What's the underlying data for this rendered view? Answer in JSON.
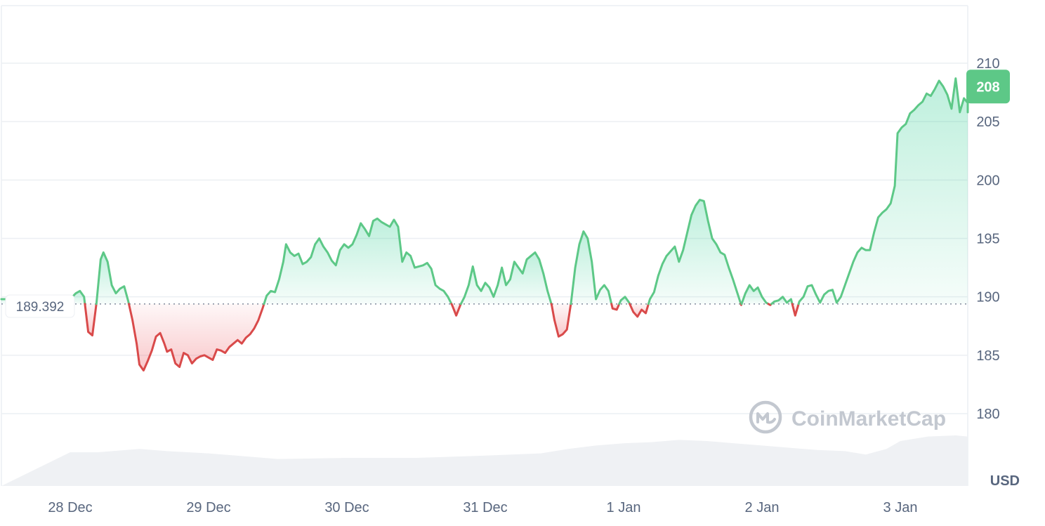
{
  "chart_data": {
    "type": "area",
    "x_labels": [
      "28 Dec",
      "29 Dec",
      "30 Dec",
      "31 Dec",
      "1 Jan",
      "2 Jan",
      "3 Jan"
    ],
    "y_ticks": [
      180,
      185,
      190,
      195,
      200,
      205,
      210
    ],
    "ylim": [
      175.5,
      212.5
    ],
    "unit": "USD",
    "baseline": 189.392,
    "baseline_label": "189.392",
    "current_value": 208,
    "current_label": "208",
    "watermark": "CoinMarketCap",
    "grid": true,
    "colors": {
      "up": "#16c784",
      "down": "#ea3943",
      "line_up": "#5dc887",
      "line_down": "#d94a4a",
      "volume": "#eff1f4",
      "current_badge": "#5dc887"
    },
    "series": [
      {
        "values": [
          [
            0,
            189.8
          ],
          [
            0.04,
            190.3
          ],
          [
            0.07,
            190.5
          ],
          [
            0.1,
            190.0
          ],
          [
            0.13,
            187.0
          ],
          [
            0.16,
            186.7
          ],
          [
            0.19,
            189.5
          ],
          [
            0.22,
            193.2
          ],
          [
            0.24,
            193.8
          ],
          [
            0.27,
            193.0
          ],
          [
            0.3,
            191.0
          ],
          [
            0.33,
            190.3
          ],
          [
            0.36,
            190.7
          ],
          [
            0.39,
            190.9
          ],
          [
            0.42,
            189.6
          ],
          [
            0.45,
            188.0
          ],
          [
            0.48,
            186.0
          ],
          [
            0.5,
            184.2
          ],
          [
            0.53,
            183.7
          ],
          [
            0.56,
            184.5
          ],
          [
            0.59,
            185.4
          ],
          [
            0.62,
            186.6
          ],
          [
            0.65,
            186.9
          ],
          [
            0.68,
            186.0
          ],
          [
            0.7,
            185.3
          ],
          [
            0.73,
            185.5
          ],
          [
            0.76,
            184.3
          ],
          [
            0.79,
            184.0
          ],
          [
            0.82,
            185.2
          ],
          [
            0.85,
            185.0
          ],
          [
            0.88,
            184.3
          ],
          [
            0.91,
            184.7
          ],
          [
            0.94,
            184.9
          ],
          [
            0.97,
            185.0
          ],
          [
            1.0,
            184.8
          ],
          [
            1.03,
            184.6
          ],
          [
            1.06,
            185.5
          ],
          [
            1.09,
            185.4
          ],
          [
            1.12,
            185.2
          ],
          [
            1.15,
            185.7
          ],
          [
            1.18,
            186.0
          ],
          [
            1.21,
            186.3
          ],
          [
            1.24,
            186.0
          ],
          [
            1.27,
            186.5
          ],
          [
            1.3,
            186.8
          ],
          [
            1.33,
            187.3
          ],
          [
            1.36,
            188.0
          ],
          [
            1.39,
            189.0
          ],
          [
            1.42,
            190.1
          ],
          [
            1.45,
            190.5
          ],
          [
            1.48,
            190.4
          ],
          [
            1.51,
            191.5
          ],
          [
            1.54,
            193.0
          ],
          [
            1.56,
            194.5
          ],
          [
            1.59,
            193.8
          ],
          [
            1.62,
            193.5
          ],
          [
            1.65,
            193.7
          ],
          [
            1.68,
            192.8
          ],
          [
            1.71,
            193.0
          ],
          [
            1.74,
            193.4
          ],
          [
            1.77,
            194.5
          ],
          [
            1.8,
            195.0
          ],
          [
            1.83,
            194.3
          ],
          [
            1.86,
            193.8
          ],
          [
            1.89,
            193.1
          ],
          [
            1.92,
            192.7
          ],
          [
            1.95,
            194.0
          ],
          [
            1.98,
            194.5
          ],
          [
            2.01,
            194.2
          ],
          [
            2.04,
            194.5
          ],
          [
            2.07,
            195.3
          ],
          [
            2.1,
            196.3
          ],
          [
            2.13,
            195.8
          ],
          [
            2.16,
            195.2
          ],
          [
            2.19,
            196.5
          ],
          [
            2.22,
            196.7
          ],
          [
            2.25,
            196.4
          ],
          [
            2.28,
            196.2
          ],
          [
            2.31,
            196.0
          ],
          [
            2.34,
            196.6
          ],
          [
            2.37,
            196.0
          ],
          [
            2.4,
            193.0
          ],
          [
            2.43,
            193.8
          ],
          [
            2.46,
            193.5
          ],
          [
            2.49,
            192.5
          ],
          [
            2.52,
            192.6
          ],
          [
            2.55,
            192.7
          ],
          [
            2.58,
            192.9
          ],
          [
            2.61,
            192.4
          ],
          [
            2.64,
            191.0
          ],
          [
            2.67,
            190.7
          ],
          [
            2.7,
            190.5
          ],
          [
            2.73,
            190.0
          ],
          [
            2.76,
            189.3
          ],
          [
            2.79,
            188.4
          ],
          [
            2.82,
            189.3
          ],
          [
            2.85,
            190.0
          ],
          [
            2.88,
            191.0
          ],
          [
            2.91,
            192.6
          ],
          [
            2.94,
            191.0
          ],
          [
            2.97,
            190.5
          ],
          [
            3.0,
            191.2
          ],
          [
            3.03,
            190.8
          ],
          [
            3.06,
            190.0
          ],
          [
            3.09,
            191.0
          ],
          [
            3.12,
            192.5
          ],
          [
            3.15,
            191.0
          ],
          [
            3.18,
            191.5
          ],
          [
            3.21,
            193.0
          ],
          [
            3.24,
            192.5
          ],
          [
            3.27,
            192.0
          ],
          [
            3.3,
            193.2
          ],
          [
            3.33,
            193.5
          ],
          [
            3.36,
            193.8
          ],
          [
            3.39,
            193.2
          ],
          [
            3.42,
            192.0
          ],
          [
            3.45,
            190.5
          ],
          [
            3.48,
            189.3
          ],
          [
            3.5,
            188.0
          ],
          [
            3.53,
            186.6
          ],
          [
            3.56,
            186.8
          ],
          [
            3.59,
            187.2
          ],
          [
            3.62,
            189.5
          ],
          [
            3.65,
            192.5
          ],
          [
            3.68,
            194.5
          ],
          [
            3.71,
            195.6
          ],
          [
            3.74,
            195.0
          ],
          [
            3.77,
            193.0
          ],
          [
            3.8,
            189.8
          ],
          [
            3.83,
            190.6
          ],
          [
            3.86,
            191.0
          ],
          [
            3.89,
            190.5
          ],
          [
            3.92,
            189.0
          ],
          [
            3.95,
            188.9
          ],
          [
            3.98,
            189.7
          ],
          [
            4.01,
            190.0
          ],
          [
            4.04,
            189.5
          ],
          [
            4.07,
            188.7
          ],
          [
            4.1,
            188.3
          ],
          [
            4.13,
            188.9
          ],
          [
            4.16,
            188.6
          ],
          [
            4.19,
            189.8
          ],
          [
            4.22,
            190.4
          ],
          [
            4.25,
            191.8
          ],
          [
            4.28,
            192.8
          ],
          [
            4.31,
            193.5
          ],
          [
            4.34,
            193.9
          ],
          [
            4.37,
            194.3
          ],
          [
            4.4,
            193.0
          ],
          [
            4.43,
            194.0
          ],
          [
            4.46,
            195.5
          ],
          [
            4.49,
            197.0
          ],
          [
            4.52,
            197.8
          ],
          [
            4.55,
            198.3
          ],
          [
            4.58,
            198.2
          ],
          [
            4.61,
            196.5
          ],
          [
            4.64,
            195.0
          ],
          [
            4.67,
            194.5
          ],
          [
            4.7,
            193.8
          ],
          [
            4.73,
            193.6
          ],
          [
            4.76,
            192.5
          ],
          [
            4.79,
            191.5
          ],
          [
            4.82,
            190.4
          ],
          [
            4.85,
            189.3
          ],
          [
            4.88,
            190.3
          ],
          [
            4.91,
            191.0
          ],
          [
            4.94,
            190.5
          ],
          [
            4.97,
            190.8
          ],
          [
            5.0,
            190.0
          ],
          [
            5.03,
            189.5
          ],
          [
            5.06,
            189.3
          ],
          [
            5.09,
            189.6
          ],
          [
            5.12,
            189.7
          ],
          [
            5.15,
            190.0
          ],
          [
            5.18,
            189.5
          ],
          [
            5.21,
            189.8
          ],
          [
            5.24,
            188.4
          ],
          [
            5.27,
            189.6
          ],
          [
            5.3,
            190.0
          ],
          [
            5.33,
            190.9
          ],
          [
            5.36,
            191.0
          ],
          [
            5.39,
            190.2
          ],
          [
            5.42,
            189.5
          ],
          [
            5.45,
            190.2
          ],
          [
            5.48,
            190.5
          ],
          [
            5.51,
            190.6
          ],
          [
            5.54,
            189.5
          ],
          [
            5.57,
            190.0
          ],
          [
            5.6,
            191.0
          ],
          [
            5.63,
            192.0
          ],
          [
            5.66,
            193.0
          ],
          [
            5.69,
            193.8
          ],
          [
            5.72,
            194.2
          ],
          [
            5.75,
            194.0
          ],
          [
            5.78,
            194.0
          ],
          [
            5.81,
            195.5
          ],
          [
            5.84,
            196.8
          ],
          [
            5.87,
            197.2
          ],
          [
            5.9,
            197.5
          ],
          [
            5.93,
            198.0
          ],
          [
            5.96,
            199.5
          ],
          [
            5.98,
            204.0
          ],
          [
            6.01,
            204.5
          ],
          [
            6.04,
            204.8
          ],
          [
            6.07,
            205.7
          ],
          [
            6.1,
            206.0
          ],
          [
            6.13,
            206.4
          ],
          [
            6.16,
            206.7
          ],
          [
            6.19,
            207.4
          ],
          [
            6.22,
            207.2
          ],
          [
            6.25,
            207.8
          ],
          [
            6.28,
            208.5
          ],
          [
            6.31,
            208.0
          ],
          [
            6.34,
            207.3
          ],
          [
            6.37,
            206.1
          ],
          [
            6.4,
            208.7
          ],
          [
            6.43,
            205.8
          ],
          [
            6.46,
            207.0
          ],
          [
            6.49,
            206.6
          ],
          [
            6.52,
            207.4
          ],
          [
            6.55,
            206.5
          ],
          [
            6.58,
            206.4
          ],
          [
            6.61,
            206.8
          ],
          [
            6.64,
            206.2
          ],
          [
            6.67,
            205.8
          ],
          [
            6.7,
            206.1
          ],
          [
            6.73,
            206.9
          ],
          [
            6.76,
            207.3
          ],
          [
            6.79,
            206.9
          ],
          [
            6.82,
            206.3
          ],
          [
            6.85,
            206.5
          ],
          [
            6.88,
            206.9
          ],
          [
            6.9,
            208.0
          ]
        ]
      }
    ],
    "volume": [
      [
        0,
        0.3
      ],
      [
        0.2,
        0.3
      ],
      [
        0.5,
        0.33
      ],
      [
        0.7,
        0.31
      ],
      [
        1.0,
        0.29
      ],
      [
        1.2,
        0.27
      ],
      [
        1.5,
        0.24
      ],
      [
        2.0,
        0.25
      ],
      [
        2.5,
        0.25
      ],
      [
        3.0,
        0.27
      ],
      [
        3.4,
        0.29
      ],
      [
        3.6,
        0.33
      ],
      [
        3.8,
        0.36
      ],
      [
        4.0,
        0.38
      ],
      [
        4.2,
        0.39
      ],
      [
        4.4,
        0.41
      ],
      [
        4.6,
        0.4
      ],
      [
        4.8,
        0.38
      ],
      [
        5.0,
        0.36
      ],
      [
        5.2,
        0.34
      ],
      [
        5.4,
        0.32
      ],
      [
        5.6,
        0.31
      ],
      [
        5.75,
        0.28
      ],
      [
        5.9,
        0.33
      ],
      [
        6.0,
        0.4
      ],
      [
        6.2,
        0.44
      ],
      [
        6.4,
        0.45
      ],
      [
        6.6,
        0.44
      ],
      [
        6.8,
        0.43
      ],
      [
        6.92,
        0.42
      ]
    ]
  }
}
